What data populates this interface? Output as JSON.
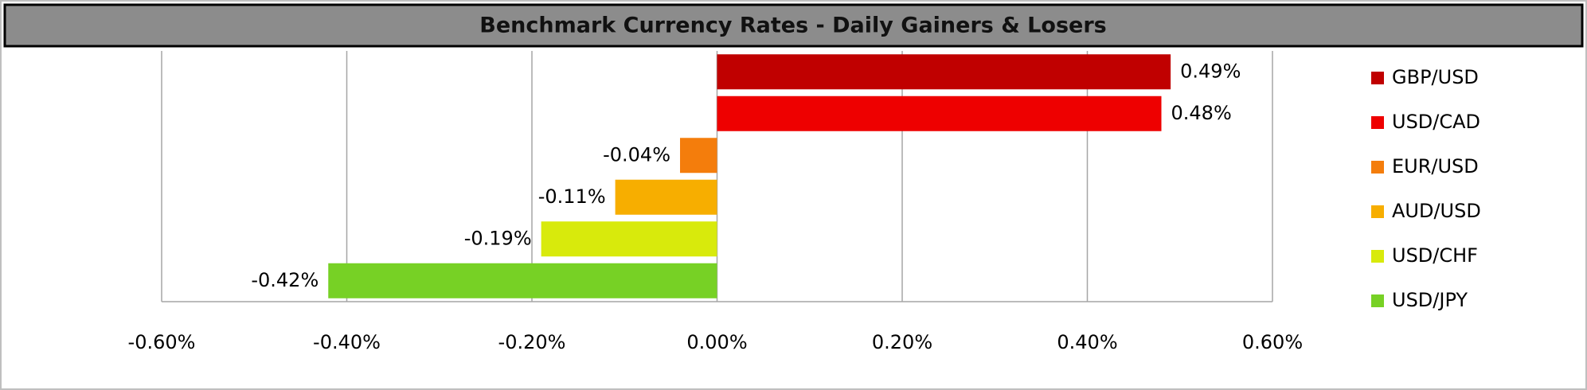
{
  "chart_data": {
    "type": "bar",
    "orientation": "horizontal",
    "title": "Benchmark Currency Rates - Daily Gainers & Losers",
    "categories": [
      "GBP/USD",
      "USD/CAD",
      "EUR/USD",
      "AUD/USD",
      "USD/CHF",
      "USD/JPY"
    ],
    "values": [
      0.49,
      0.48,
      -0.04,
      -0.11,
      -0.19,
      -0.42
    ],
    "value_labels": [
      "0.49%",
      "0.48%",
      "-0.04%",
      "-0.11%",
      "-0.19%",
      "-0.42%"
    ],
    "colors": [
      "#c00000",
      "#ee0000",
      "#f47d0c",
      "#f7ae00",
      "#d8ea0c",
      "#77d125"
    ],
    "xlim": [
      -0.6,
      0.6
    ],
    "xticks": [
      {
        "value": -0.6,
        "label": "-0.60%"
      },
      {
        "value": -0.4,
        "label": "-0.40%"
      },
      {
        "value": -0.2,
        "label": "-0.20%"
      },
      {
        "value": 0,
        "label": "0.00%"
      },
      {
        "value": 0.2,
        "label": "0.20%"
      },
      {
        "value": 0.4,
        "label": "0.40%"
      },
      {
        "value": 0.6,
        "label": "0.60%"
      }
    ],
    "grid": true,
    "legend": "right"
  }
}
